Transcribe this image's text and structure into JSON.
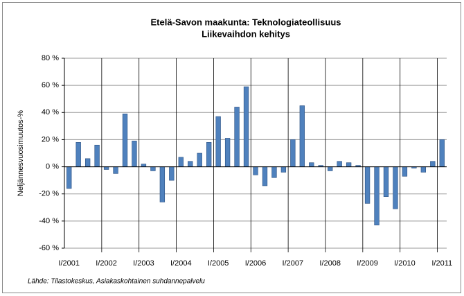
{
  "chart_data": {
    "type": "bar",
    "title": "Etelä-Savon maakunta: Teknologiateollisuus",
    "subtitle": "Liikevaihdon kehitys",
    "y_label": "Neljännesvuosimuutos-%",
    "source": "Lähde: Tilastokeskus, Asiakaskohtainen suhdannepalvelu",
    "categories": [
      "I/2001",
      null,
      null,
      null,
      "I/2002",
      null,
      null,
      null,
      "I/2003",
      null,
      null,
      null,
      "I/2004",
      null,
      null,
      null,
      "I/2005",
      null,
      null,
      null,
      "I/2006",
      null,
      null,
      null,
      "I/2007",
      null,
      null,
      null,
      "I/2008",
      null,
      null,
      null,
      "I/2009",
      null,
      null,
      null,
      "I/2010",
      null,
      null,
      null,
      "I/2011"
    ],
    "values": [
      -16,
      18,
      6,
      16,
      -2,
      -5,
      39,
      19,
      2,
      -3,
      -26,
      -10,
      7,
      4,
      10,
      18,
      37,
      21,
      44,
      59,
      -6,
      -14,
      -8,
      -4,
      20,
      45,
      3,
      1,
      -3,
      4,
      3,
      1,
      -27,
      -43,
      -22,
      -31,
      -7,
      -1,
      -4,
      4,
      20
    ],
    "color": "#4f81bd",
    "ylim": [
      -60,
      80
    ],
    "yticks": [
      {
        "value": -60,
        "label": "-60 %"
      },
      {
        "value": -40,
        "label": "-40 %"
      },
      {
        "value": -20,
        "label": "-20 %"
      },
      {
        "value": 0,
        "label": "0 %"
      },
      {
        "value": 20,
        "label": "20 %"
      },
      {
        "value": 40,
        "label": "40 %"
      },
      {
        "value": 60,
        "label": "60 %"
      },
      {
        "value": 80,
        "label": "80 %"
      }
    ],
    "grid": true
  }
}
